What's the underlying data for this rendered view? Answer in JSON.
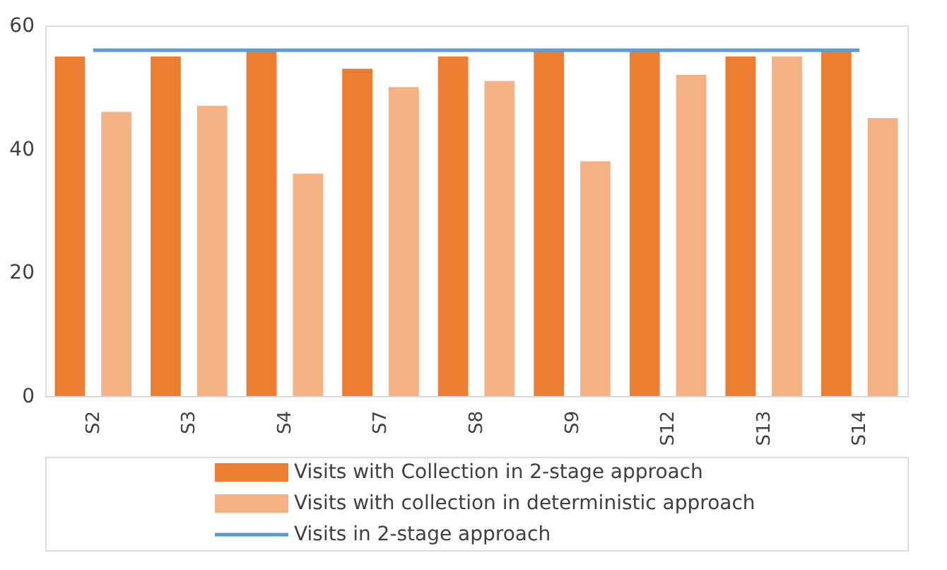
{
  "chart_data": {
    "type": "bar",
    "categories": [
      "S2",
      "S3",
      "S4",
      "S7",
      "S8",
      "S9",
      "S12",
      "S13",
      "S14"
    ],
    "series": [
      {
        "name": "Visits with Collection in 2-stage approach",
        "color": "#ed7d31",
        "values": [
          55,
          55,
          56,
          53,
          55,
          56,
          56,
          55,
          56
        ]
      },
      {
        "name": "Visits with collection in deterministic approach",
        "color": "#f4b183",
        "values": [
          46,
          47,
          36,
          50,
          51,
          38,
          52,
          55,
          45
        ]
      },
      {
        "name": "Visits in 2-stage approach",
        "color": "#5b9bd5",
        "type": "line",
        "values": [
          56,
          56,
          56,
          56,
          56,
          56,
          56,
          56,
          56
        ]
      }
    ],
    "ylim": [
      0,
      60
    ],
    "yticks": [
      0,
      20,
      40,
      60
    ],
    "grid": false,
    "legend": "bottom"
  }
}
